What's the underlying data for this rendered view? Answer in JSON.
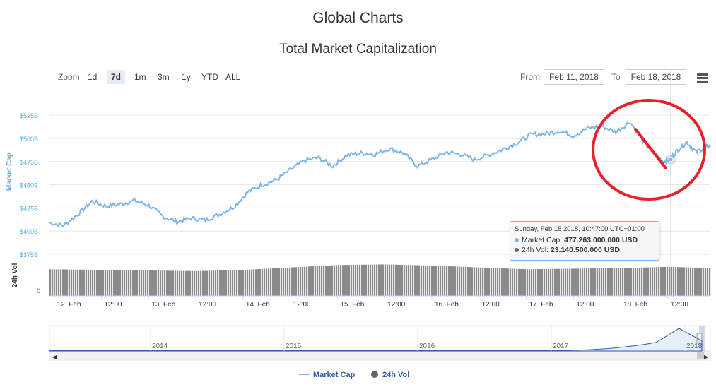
{
  "header": {
    "page_title": "Global Charts",
    "chart_title": "Total Market Capitalization"
  },
  "toolbar": {
    "zoom_label": "Zoom",
    "zoom_buttons": [
      "1d",
      "7d",
      "1m",
      "3m",
      "1y",
      "YTD",
      "ALL"
    ],
    "active_zoom": "7d",
    "from_label": "From",
    "from_value": "Feb 11, 2018",
    "to_label": "To",
    "to_value": "Feb 18, 2018",
    "menu_icon": "hamburger-menu-icon"
  },
  "tooltip": {
    "header": "Sunday, Feb 18 2018, 10:47:00 UTC+01:00",
    "market_cap_label": "Market Cap:",
    "market_cap_value": "477.263.000.000 USD",
    "vol_label": "24h Vol:",
    "vol_value": "23.140.500.000 USD"
  },
  "legend": {
    "market_cap": "Market Cap",
    "vol": "24h Vol"
  },
  "colors": {
    "market_cap": "#7cb5ec",
    "market_cap_axis": "#5aace3",
    "volume": "#8a8a8a",
    "annotation": "#e8202a"
  },
  "chart_data": {
    "type": "line",
    "title": "Total Market Capitalization",
    "ylabel": "Market Cap",
    "yticks": [
      "$375B",
      "$400B",
      "$425B",
      "$450B",
      "$475B",
      "$500B",
      "$525B"
    ],
    "ylim": [
      375,
      535
    ],
    "xticks": [
      "12. Feb",
      "12:00",
      "13. Feb",
      "12:00",
      "14. Feb",
      "12:00",
      "15. Feb",
      "12:00",
      "16. Feb",
      "12:00",
      "17. Feb",
      "12:00",
      "18. Feb",
      "12:00"
    ],
    "xlim_days": [
      11.95,
      18.95
    ],
    "series": [
      {
        "name": "Market Cap",
        "unit": "B USD",
        "x_day": [
          11.95,
          12.1,
          12.25,
          12.4,
          12.55,
          12.7,
          12.85,
          13.0,
          13.15,
          13.3,
          13.45,
          13.6,
          13.75,
          13.9,
          14.05,
          14.2,
          14.35,
          14.5,
          14.65,
          14.8,
          14.95,
          15.1,
          15.25,
          15.4,
          15.55,
          15.7,
          15.85,
          16.0,
          16.15,
          16.3,
          16.45,
          16.6,
          16.75,
          16.9,
          17.05,
          17.2,
          17.35,
          17.5,
          17.65,
          17.8,
          17.95,
          18.1,
          18.25,
          18.35,
          18.45,
          18.52,
          18.6,
          18.7,
          18.8,
          18.9,
          18.95
        ],
        "values": [
          409,
          406,
          418,
          432,
          427,
          429,
          433,
          428,
          416,
          410,
          414,
          412,
          418,
          426,
          442,
          450,
          455,
          466,
          476,
          479,
          470,
          482,
          484,
          483,
          489,
          484,
          470,
          477,
          485,
          483,
          477,
          482,
          488,
          495,
          504,
          505,
          508,
          503,
          511,
          513,
          507,
          518,
          495,
          485,
          475,
          477,
          487,
          496,
          485,
          491,
          492
        ]
      },
      {
        "name": "24h Vol",
        "note": "volume bars, relative scale",
        "x_day": [
          11.95,
          12.5,
          13.0,
          13.5,
          14.0,
          14.5,
          15.0,
          15.5,
          16.0,
          16.5,
          17.0,
          17.5,
          18.0,
          18.5,
          18.95
        ],
        "values": [
          22,
          21.5,
          21,
          20.5,
          21.5,
          23.5,
          25.5,
          26,
          25,
          23.5,
          22,
          22.5,
          23,
          24,
          23
        ]
      }
    ],
    "navigator": {
      "labels": [
        "2014",
        "2015",
        "2016",
        "2017",
        "2018"
      ]
    },
    "legend_position": "bottom-center"
  }
}
